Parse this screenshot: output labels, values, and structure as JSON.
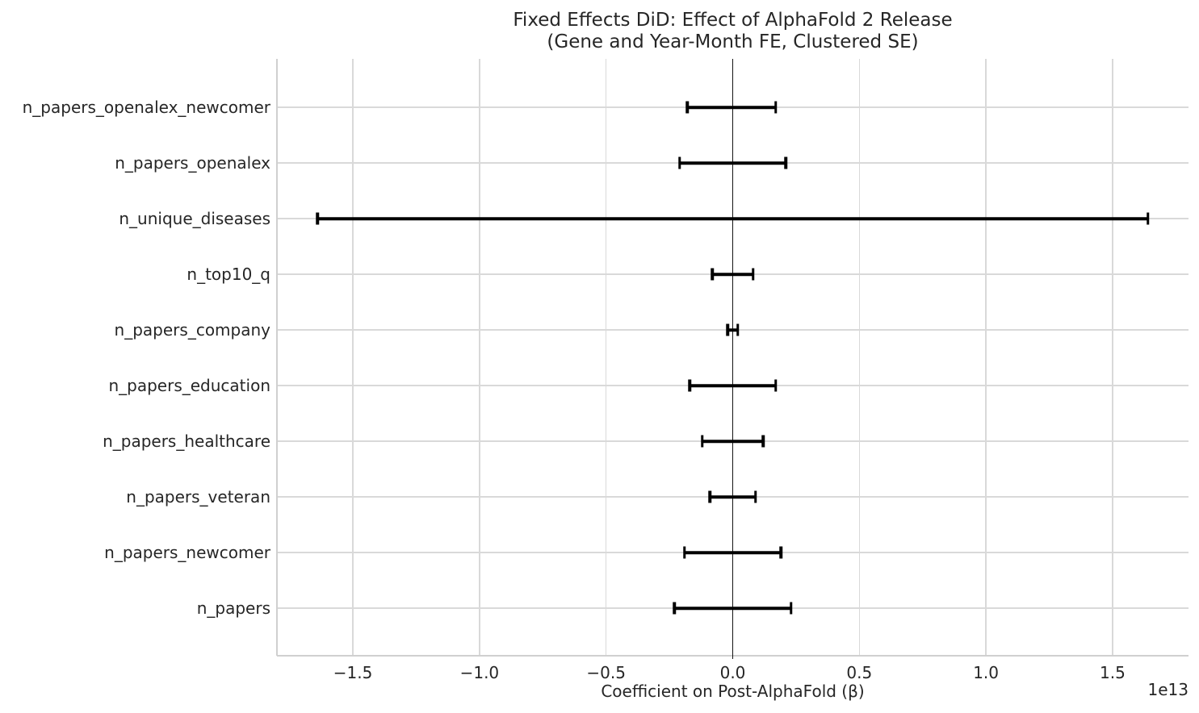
{
  "chart_data": {
    "type": "errorbar",
    "title_line1": "Fixed Effects DiD: Effect of AlphaFold 2 Release",
    "title_line2": "(Gene and Year-Month FE, Clustered SE)",
    "xlabel": "Coefficient on Post-AlphaFold (β)",
    "x_offset_label": "1e13",
    "x_unit_multiplier": 10000000000000.0,
    "xlim": [
      -1.8,
      1.8
    ],
    "xticks": [
      -1.5,
      -1.0,
      -0.5,
      0.0,
      0.5,
      1.0,
      1.5
    ],
    "xtick_labels": [
      "−1.5",
      "−1.0",
      "−0.5",
      "0.0",
      "0.5",
      "1.0",
      "1.5"
    ],
    "grid": true,
    "legend": false,
    "categories": [
      "n_papers_openalex_newcomer",
      "n_papers_openalex",
      "n_unique_diseases",
      "n_top10_q",
      "n_papers_company",
      "n_papers_education",
      "n_papers_healthcare",
      "n_papers_veteran",
      "n_papers_newcomer",
      "n_papers"
    ],
    "series": [
      {
        "name": "coefficient_with_ci",
        "coef": [
          0.0,
          0.0,
          0.0,
          0.0,
          0.0,
          0.0,
          0.0,
          0.0,
          0.0,
          0.0
        ],
        "ci_low": [
          -0.18,
          -0.21,
          -1.64,
          -0.08,
          -0.02,
          -0.17,
          -0.12,
          -0.09,
          -0.19,
          -0.23
        ],
        "ci_high": [
          0.17,
          0.21,
          1.64,
          0.08,
          0.02,
          0.17,
          0.12,
          0.09,
          0.19,
          0.23
        ]
      }
    ],
    "colors": {
      "background": "#ffffff",
      "errorbar": "#000000",
      "zero_line": "#141414",
      "gridline": "#d9d9d9",
      "spine": "#d0d0d0",
      "text": "#262626"
    }
  }
}
